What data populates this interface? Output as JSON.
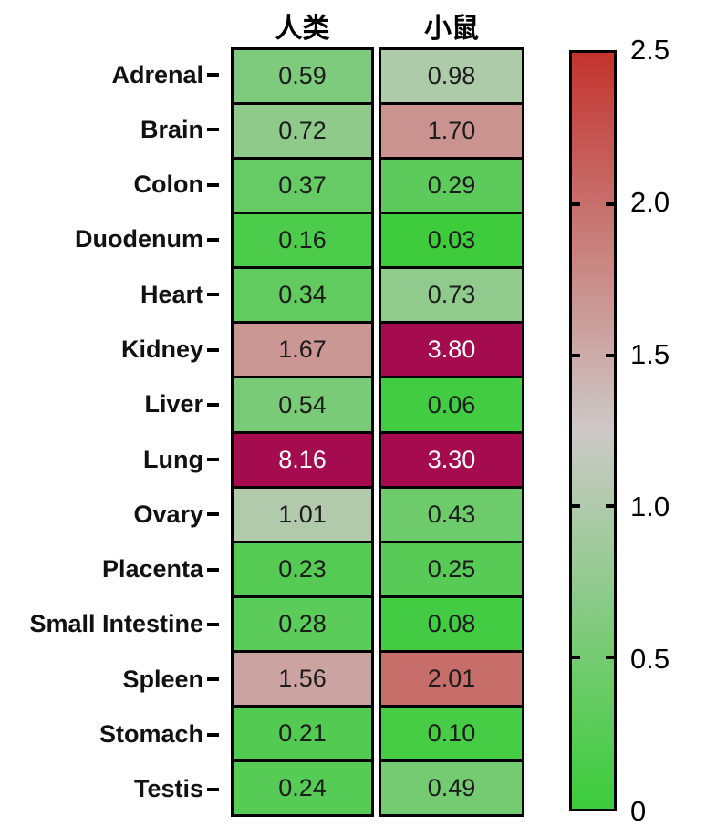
{
  "chart_data": {
    "type": "heatmap",
    "title": "",
    "categories": [
      "Adrenal",
      "Brain",
      "Colon",
      "Duodenum",
      "Heart",
      "Kidney",
      "Liver",
      "Lung",
      "Ovary",
      "Placenta",
      "Small Intestine",
      "Spleen",
      "Stomach",
      "Testis"
    ],
    "series": [
      {
        "name": "人类",
        "values": [
          "0.59",
          "0.72",
          "0.37",
          "0.16",
          "0.34",
          "1.67",
          "0.54",
          "8.16",
          "1.01",
          "0.23",
          "0.28",
          "1.56",
          "0.21",
          "0.24"
        ]
      },
      {
        "name": "小鼠",
        "values": [
          "0.98",
          "1.70",
          "0.29",
          "0.03",
          "0.73",
          "3.80",
          "0.06",
          "3.30",
          "0.43",
          "0.25",
          "0.08",
          "2.01",
          "0.10",
          "0.49"
        ]
      }
    ],
    "colorbar": {
      "min": 0,
      "max": 2.5,
      "mid_value": 1.25,
      "ticks": [
        "2.5",
        "2.0",
        "1.5",
        "1.0",
        "0.5",
        "0"
      ],
      "tick_fractions_from_top": [
        0,
        0.2,
        0.4,
        0.6,
        0.8,
        1.0
      ],
      "min_color": "#3acc3a",
      "mid_color": "#cdc9c7",
      "max_color": "#c4332e",
      "over_color": "#a50c50",
      "legend_position": "right"
    },
    "cell_text_color": "#1c1c1c",
    "over_cell_text_color": "#ffffff",
    "grid": "black cell borders",
    "background": "#ffffff"
  }
}
